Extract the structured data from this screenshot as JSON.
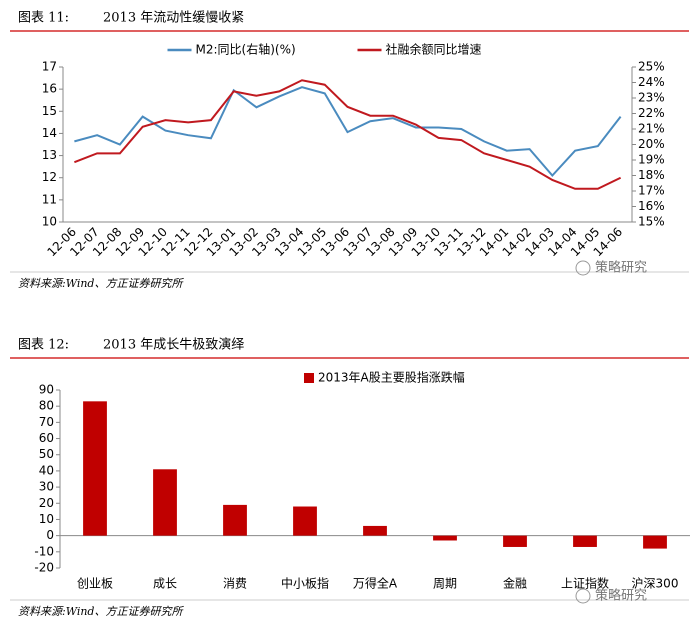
{
  "chart_data": [
    {
      "type": "line",
      "label": "图表 11:",
      "title": "2013 年流动性缓慢收紧",
      "source": "资料来源:Wind、方正证券研究所",
      "watermark": "策略研究",
      "categories": [
        "12-06",
        "12-07",
        "12-08",
        "12-09",
        "12-10",
        "12-11",
        "12-12",
        "13-01",
        "13-02",
        "13-03",
        "13-04",
        "13-05",
        "13-06",
        "13-07",
        "13-08",
        "13-09",
        "13-10",
        "13-11",
        "13-12",
        "14-01",
        "14-02",
        "14-03",
        "14-04",
        "14-05",
        "14-06"
      ],
      "series": [
        {
          "name": "M2:同比(右轴)(%)",
          "color": "#4a8bbf",
          "axis": "y2",
          "values": [
            20.2,
            20.6,
            20.0,
            21.8,
            20.9,
            20.6,
            20.4,
            23.5,
            22.4,
            23.1,
            23.7,
            23.3,
            20.8,
            21.5,
            21.7,
            21.1,
            21.1,
            21.0,
            20.2,
            19.6,
            19.7,
            18.0,
            19.6,
            19.9,
            21.8
          ]
        },
        {
          "name": "社融余额同比增速",
          "color": "#c0191f",
          "values": [
            12.7,
            13.1,
            13.1,
            14.3,
            14.6,
            14.5,
            14.6,
            15.9,
            15.7,
            15.9,
            16.4,
            16.2,
            15.2,
            14.8,
            14.8,
            14.4,
            13.8,
            13.7,
            13.1,
            12.8,
            12.5,
            11.9,
            11.5,
            11.5,
            12.0
          ]
        }
      ],
      "ylim": [
        10,
        17
      ],
      "yticks": [
        10,
        11,
        12,
        13,
        14,
        15,
        16,
        17
      ],
      "y2lim": [
        15,
        25
      ],
      "y2ticks": [
        {
          "value": 15,
          "label": "15%"
        },
        {
          "value": 16,
          "label": "16%"
        },
        {
          "value": 17,
          "label": "17%"
        },
        {
          "value": 18,
          "label": "18%"
        },
        {
          "value": 19,
          "label": "19%"
        },
        {
          "value": 20,
          "label": "20%"
        },
        {
          "value": 21,
          "label": "21%"
        },
        {
          "value": 22,
          "label": "22%"
        },
        {
          "value": 23,
          "label": "23%"
        },
        {
          "value": 24,
          "label": "24%"
        },
        {
          "value": 25,
          "label": "25%"
        }
      ],
      "legend": "top"
    },
    {
      "type": "bar",
      "label": "图表 12:",
      "title": "2013 年成长牛极致演绎",
      "source": "资料来源:Wind、方正证券研究所",
      "watermark": "策略研究",
      "categories": [
        "创业板",
        "成长",
        "消费",
        "中小板指",
        "万得全A",
        "周期",
        "金融",
        "上证指数",
        "沪深300"
      ],
      "series": [
        {
          "name": "2013年A股主要股指涨跌幅",
          "color": "#c00000",
          "values": [
            83,
            41,
            19,
            18,
            6,
            -3,
            -7,
            -7,
            -8
          ]
        }
      ],
      "ylim": [
        -20,
        90
      ],
      "yticks": [
        -20,
        -10,
        0,
        10,
        20,
        30,
        40,
        50,
        60,
        70,
        80,
        90
      ],
      "legend": "top"
    }
  ]
}
